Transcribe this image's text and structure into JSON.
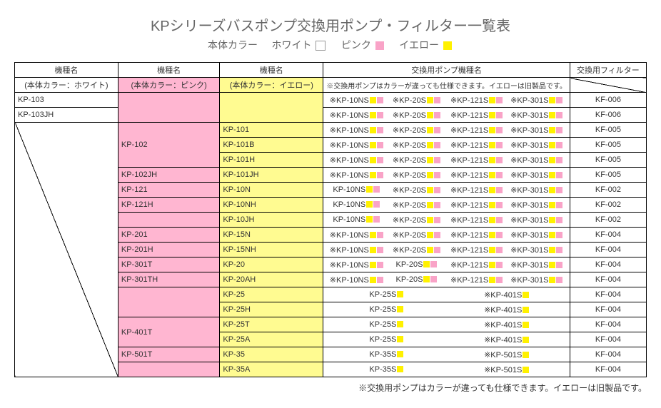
{
  "title": "KPシリーズバスポンプ交換用ポンプ・フィルター一覧表",
  "subtitle_prefix": "本体カラー",
  "legend": {
    "white_label": "ホワイト",
    "pink_label": "ピンク",
    "yellow_label": "イエロー",
    "white_hex": "#ffffff",
    "pink_hex": "#f9a3c7",
    "yellow_hex": "#fff100"
  },
  "headers": {
    "col1": "機種名",
    "col2": "機種名",
    "col3": "機種名",
    "col4": "交換用ポンプ機種名",
    "col5": "交換用フィルター",
    "sub1": "(本体カラー：ホワイト)",
    "sub2": "(本体カラー：ピンク)",
    "sub3": "(本体カラー：イエロー)",
    "pump_note": "※交換用ポンプはカラーが違っても仕様できます。イエローは旧製品です。"
  },
  "colors": {
    "pink_bg": "#ffb6d1",
    "yellow_bg": "#fffb91",
    "pump_yellow": "#fff100",
    "pump_pink": "#f9a3c7"
  },
  "pump_labels": {
    "p10ns": "※KP-10NS",
    "p20s": "※KP-20S",
    "p121s": "※KP-121S",
    "p301s": "※KP-301S",
    "n10ns": "KP-10NS",
    "n20s": "KP-20S",
    "n25s": "KP-25S",
    "n35s": "KP-35S",
    "p401s": "※KP-401S",
    "p501s": "※KP-501S"
  },
  "rows": [
    {
      "white": "KP-103",
      "pink": "",
      "yellow": "",
      "pumps": [
        "p10ns",
        "p20s",
        "p121s",
        "p301s"
      ],
      "filter": "KF-006",
      "pink_span": 2,
      "yellow_span": 2,
      "pink_diag": true,
      "yellow_diag": true
    },
    {
      "white": "KP-103JH",
      "pumps": [
        "p10ns",
        "p20s",
        "p121s",
        "p301s"
      ],
      "filter": "KF-006"
    },
    {
      "white": "",
      "pink": "KP-102",
      "yellow": "KP-101",
      "pumps": [
        "p10ns",
        "p20s",
        "p121s",
        "p301s"
      ],
      "filter": "KF-005",
      "white_span": 17,
      "white_diag": true,
      "pink_span": 3
    },
    {
      "yellow": "KP-101B",
      "pumps": [
        "p10ns",
        "p20s",
        "p121s",
        "p301s"
      ],
      "filter": "KF-005"
    },
    {
      "yellow": "KP-101H",
      "pumps": [
        "p10ns",
        "p20s",
        "p121s",
        "p301s"
      ],
      "filter": "KF-005"
    },
    {
      "pink": "KP-102JH",
      "yellow": "KP-101JH",
      "pumps": [
        "p10ns",
        "p20s",
        "p121s",
        "p301s"
      ],
      "filter": "KF-005"
    },
    {
      "pink": "KP-121",
      "yellow": "KP-10N",
      "pumps": [
        "n10ns",
        "p20s",
        "p121s",
        "p301s"
      ],
      "filter": "KF-002"
    },
    {
      "pink": "KP-121H",
      "yellow": "KP-10NH",
      "pumps": [
        "n10ns",
        "p20s",
        "p121s",
        "p301s"
      ],
      "filter": "KF-002"
    },
    {
      "pink": "",
      "pink_diag": true,
      "yellow": "KP-10JH",
      "pumps": [
        "n10ns",
        "p20s",
        "p121s",
        "p301s"
      ],
      "filter": "KF-002"
    },
    {
      "pink": "KP-201",
      "yellow": "KP-15N",
      "pumps": [
        "p10ns",
        "p20s",
        "p121s",
        "p301s"
      ],
      "filter": "KF-004"
    },
    {
      "pink": "KP-201H",
      "yellow": "KP-15NH",
      "pumps": [
        "p10ns",
        "p20s",
        "p121s",
        "p301s"
      ],
      "filter": "KF-004"
    },
    {
      "pink": "KP-301T",
      "yellow": "KP-20",
      "pumps": [
        "p10ns",
        "n20s",
        "p121s",
        "p301s"
      ],
      "filter": "KF-004"
    },
    {
      "pink": "KP-301TH",
      "yellow": "KP-20AH",
      "pumps": [
        "p10ns",
        "n20s",
        "p121s",
        "p301s"
      ],
      "filter": "KF-004"
    },
    {
      "pink": "",
      "pink_diag": true,
      "pink_span": 2,
      "yellow": "KP-25",
      "pumps": [
        "n25s",
        "p401s"
      ],
      "filter": "KF-004"
    },
    {
      "yellow": "KP-25H",
      "pumps": [
        "n25s",
        "p401s"
      ],
      "filter": "KF-004"
    },
    {
      "pink": "KP-401T",
      "pink_span": 2,
      "yellow": "KP-25T",
      "pumps": [
        "n25s",
        "p401s"
      ],
      "filter": "KF-004"
    },
    {
      "yellow": "KP-25A",
      "pumps": [
        "n25s",
        "p401s"
      ],
      "filter": "KF-004"
    },
    {
      "pink": "KP-501T",
      "yellow": "KP-35",
      "pumps": [
        "n35s",
        "p501s"
      ],
      "filter": "KF-004"
    },
    {
      "pink": "",
      "pink_diag": true,
      "yellow": "KP-35A",
      "pumps": [
        "n35s",
        "p501s"
      ],
      "filter": "KF-004"
    }
  ],
  "footnote": "※交換用ポンプはカラーが違っても仕様できます。イエローは旧製品です。"
}
